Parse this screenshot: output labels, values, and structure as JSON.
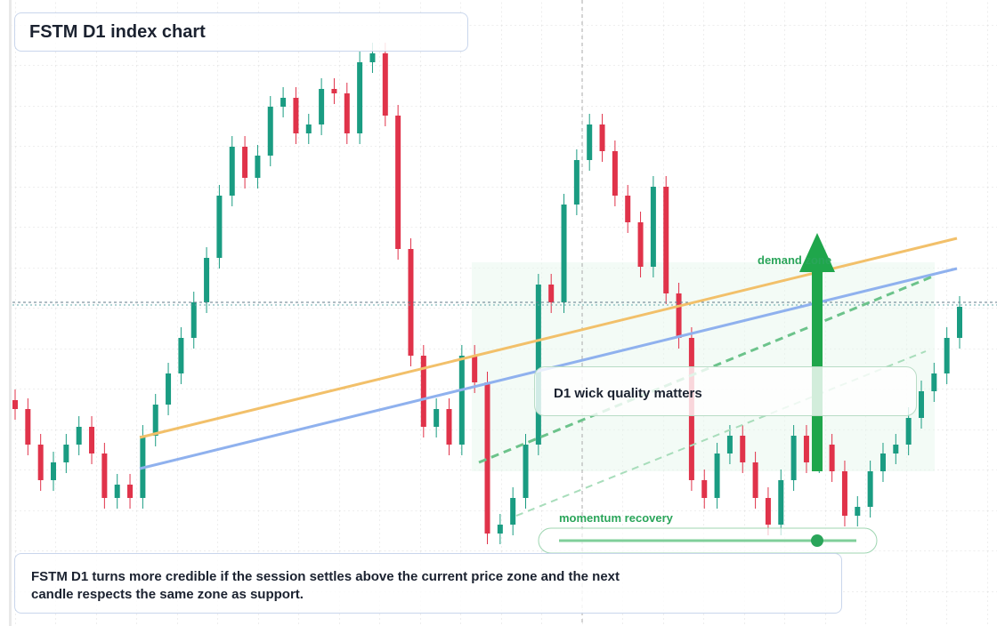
{
  "chart_data": {
    "type": "candlestick",
    "title": "FSTM D1 index chart",
    "annotations": [
      "demand zone",
      "D1 wick quality matters",
      "momentum recovery"
    ],
    "note": "FSTM D1 turns more credible if the session settles above the current price zone and the next candle respects the same zone as support.",
    "ylim": [
      0,
      704
    ],
    "up_color": "#1a9c82",
    "down_color": "#e0334a",
    "open": [
      254,
      244,
      204,
      164,
      184,
      204,
      224,
      194,
      144,
      159,
      144,
      214,
      249,
      284,
      324,
      364,
      414,
      484,
      539,
      504,
      529,
      584,
      594,
      554,
      564,
      604,
      599,
      554,
      634,
      644,
      574,
      424,
      304,
      224,
      244,
      204,
      304,
      274,
      104,
      114,
      144,
      204,
      384,
      364,
      474,
      524,
      564,
      534,
      484,
      454,
      404,
      494,
      374,
      324,
      164,
      144,
      194,
      214,
      184,
      144,
      114,
      164,
      214,
      184,
      204,
      174,
      124,
      134,
      174,
      194,
      204,
      234,
      264,
      284,
      324
    ],
    "high": [
      266,
      256,
      216,
      196,
      216,
      236,
      236,
      206,
      171,
      171,
      226,
      261,
      296,
      336,
      376,
      426,
      496,
      551,
      551,
      541,
      596,
      606,
      606,
      576,
      616,
      616,
      611,
      646,
      656,
      656,
      586,
      436,
      316,
      256,
      256,
      316,
      316,
      286,
      126,
      156,
      216,
      396,
      396,
      486,
      536,
      576,
      576,
      546,
      496,
      466,
      506,
      506,
      386,
      336,
      176,
      206,
      226,
      226,
      196,
      156,
      176,
      226,
      226,
      216,
      216,
      186,
      146,
      186,
      206,
      216,
      246,
      276,
      296,
      336,
      371
    ],
    "low": [
      232,
      192,
      152,
      152,
      172,
      192,
      182,
      132,
      132,
      132,
      132,
      202,
      237,
      272,
      312,
      352,
      402,
      472,
      492,
      492,
      517,
      572,
      542,
      542,
      552,
      587,
      542,
      542,
      622,
      562,
      412,
      292,
      212,
      212,
      192,
      192,
      262,
      92,
      92,
      102,
      132,
      192,
      352,
      352,
      462,
      512,
      522,
      472,
      442,
      392,
      392,
      362,
      312,
      152,
      132,
      132,
      182,
      172,
      132,
      102,
      102,
      152,
      172,
      172,
      162,
      112,
      112,
      122,
      162,
      182,
      192,
      222,
      252,
      272,
      312
    ],
    "close": [
      244,
      204,
      164,
      184,
      204,
      224,
      194,
      144,
      159,
      144,
      214,
      249,
      284,
      324,
      364,
      414,
      484,
      539,
      504,
      529,
      584,
      594,
      554,
      564,
      604,
      599,
      554,
      634,
      644,
      574,
      424,
      304,
      224,
      244,
      204,
      304,
      274,
      104,
      114,
      144,
      204,
      384,
      364,
      474,
      524,
      564,
      534,
      484,
      454,
      404,
      494,
      374,
      324,
      164,
      144,
      194,
      214,
      184,
      144,
      114,
      164,
      214,
      184,
      204,
      174,
      124,
      134,
      174,
      194,
      204,
      234,
      264,
      284,
      324,
      359
    ]
  }
}
